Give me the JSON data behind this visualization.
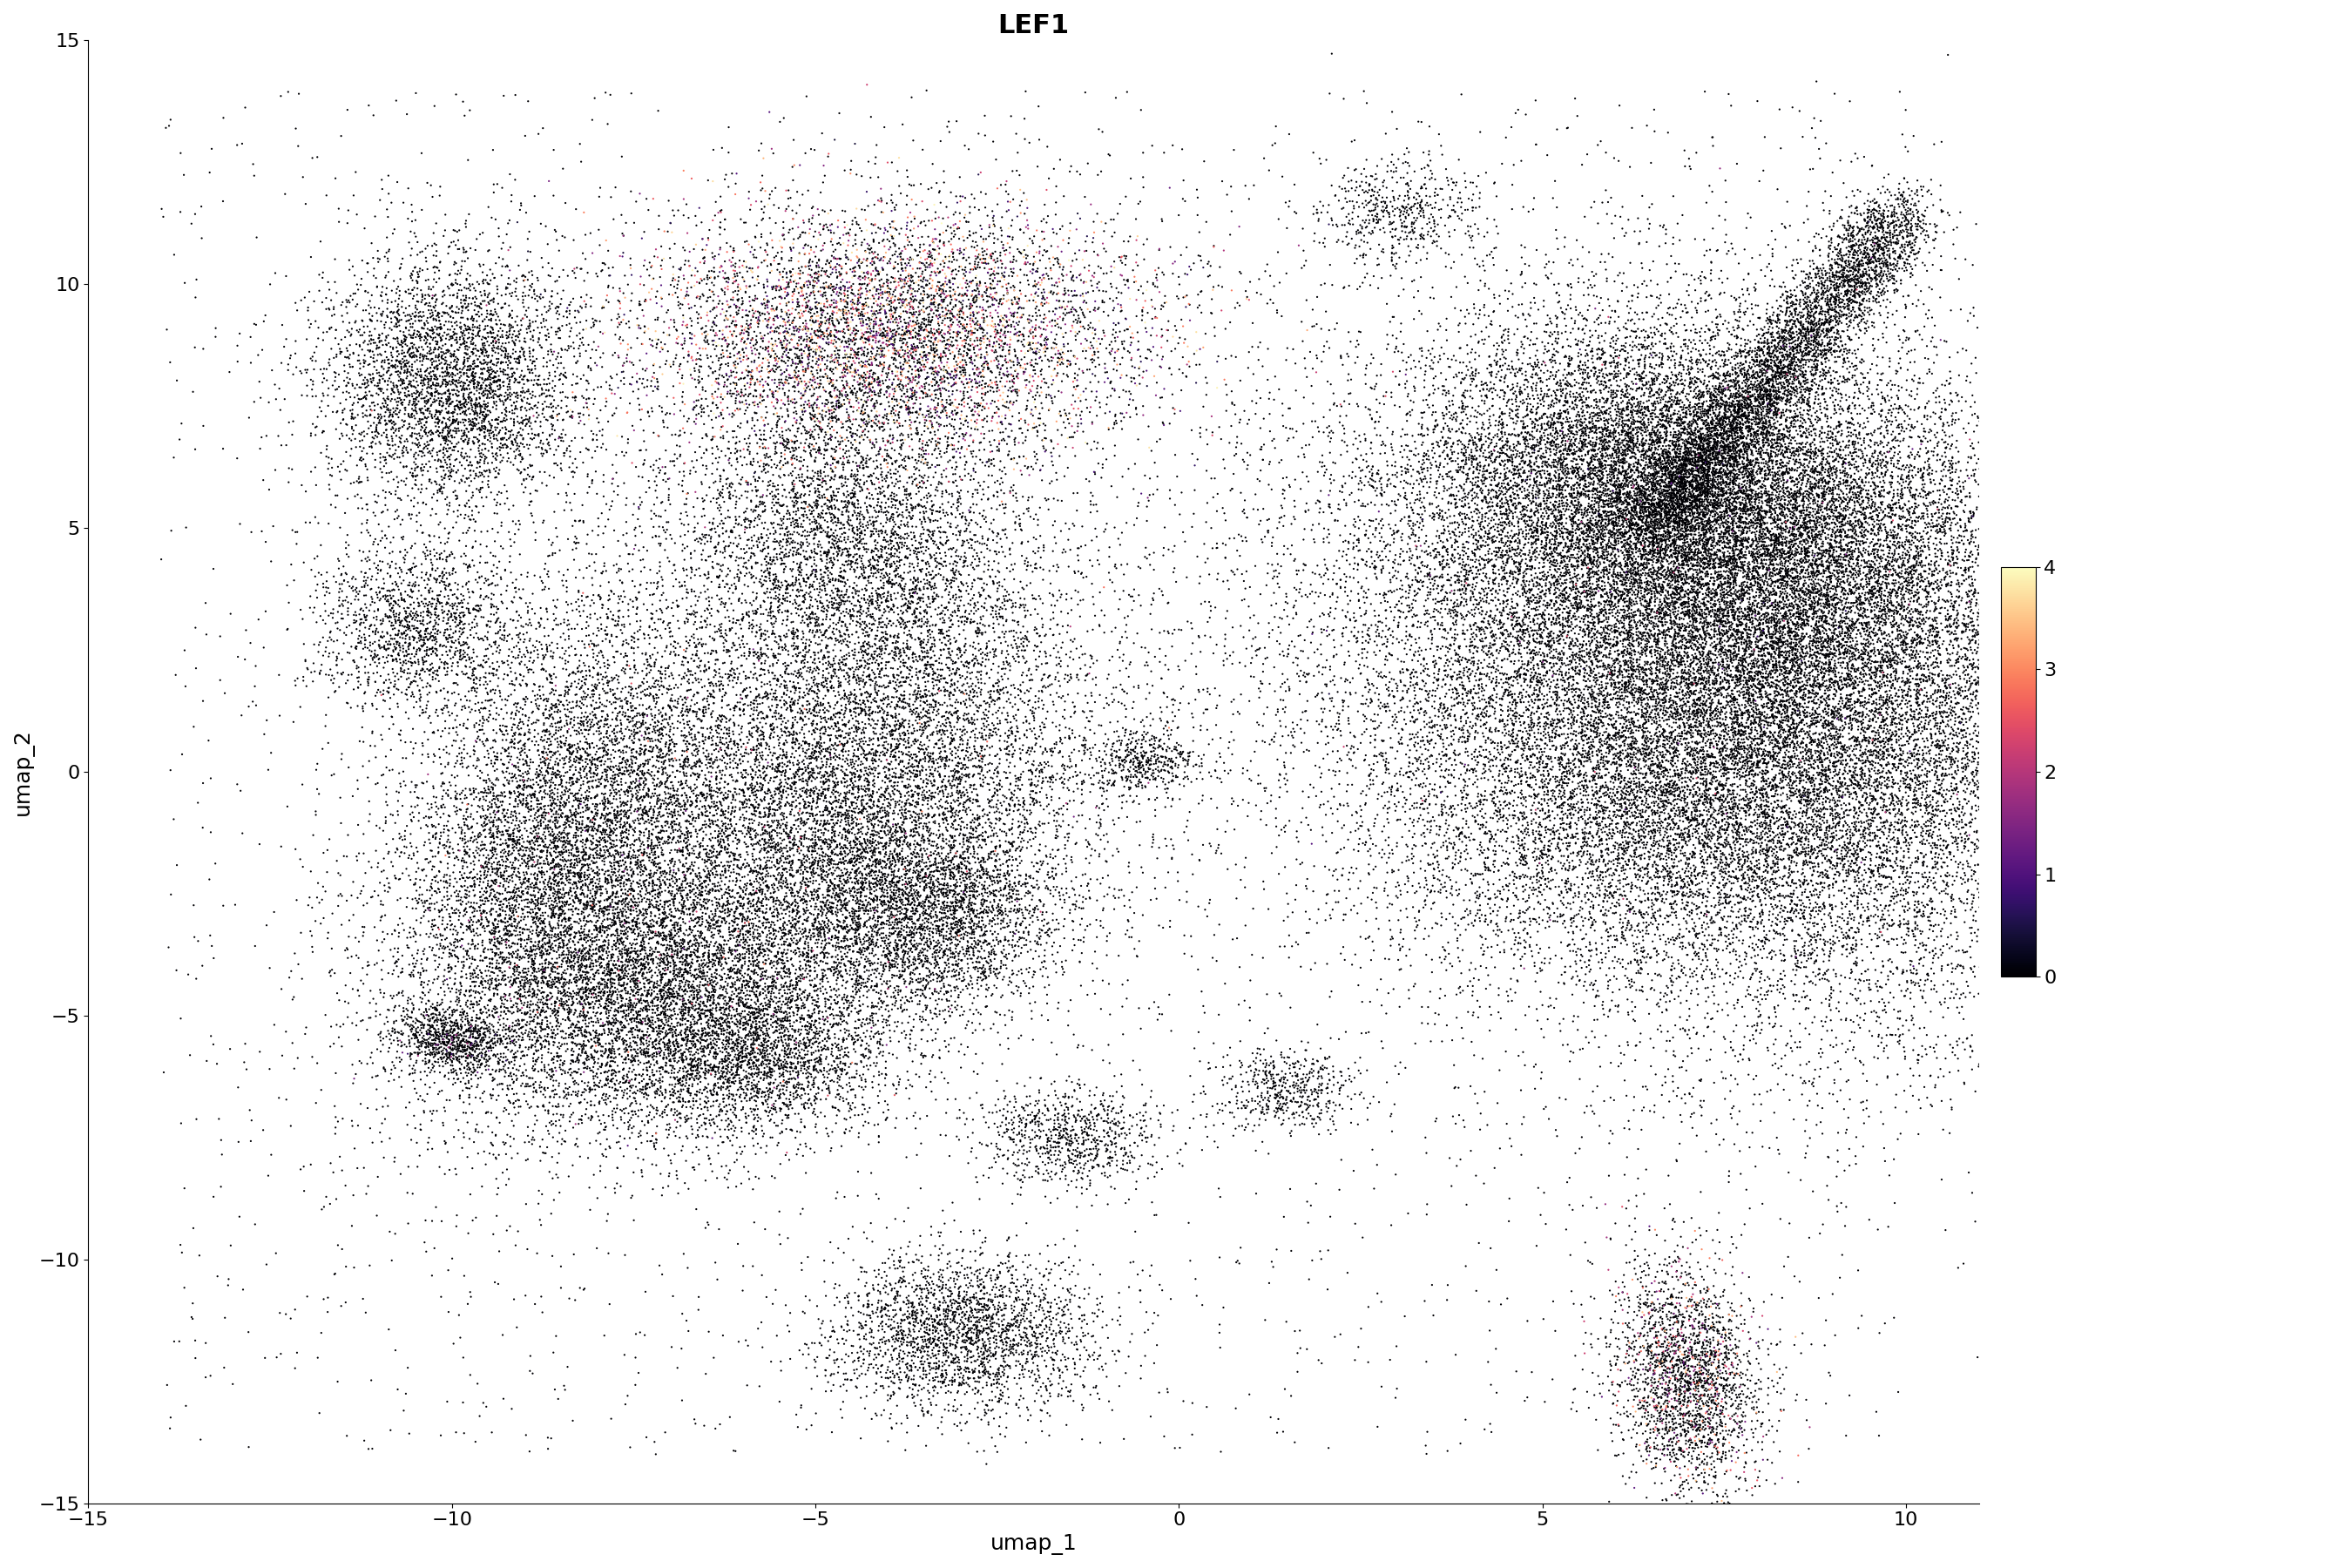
{
  "title": "LEF1",
  "xlabel": "umap_1",
  "ylabel": "umap_2",
  "xlim": [
    -15,
    11
  ],
  "ylim": [
    -15,
    15
  ],
  "xticks": [
    -15,
    -10,
    -5,
    0,
    5,
    10
  ],
  "yticks": [
    -15,
    -10,
    -5,
    0,
    5,
    10,
    15
  ],
  "colormap": "magma",
  "vmin": 0,
  "vmax": 4,
  "cbar_ticks": [
    0,
    1,
    2,
    3,
    4
  ],
  "title_fontsize": 22,
  "label_fontsize": 18,
  "tick_fontsize": 16,
  "point_size": 2.5,
  "alpha": 1.0,
  "background_color": "#ffffff",
  "seed": 42
}
